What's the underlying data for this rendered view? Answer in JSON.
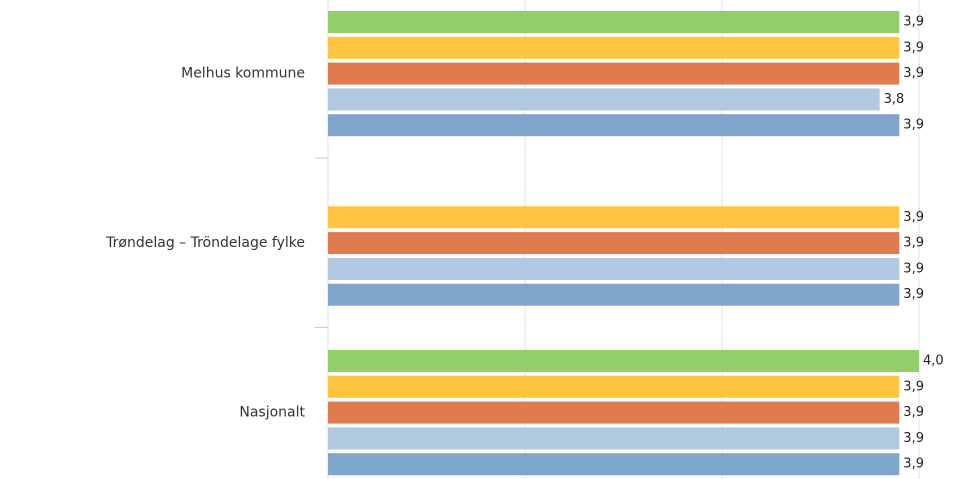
{
  "chart_data": {
    "type": "hbar",
    "categories": [
      "Melhus kommune",
      "Trøndelag – Tröndelage fylke",
      "Nasjonalt"
    ],
    "series": [
      {
        "color": "#92cf6a",
        "values": [
          3.9,
          null,
          4.0
        ],
        "value_labels": [
          "3,9",
          null,
          "4,0"
        ]
      },
      {
        "color": "#fec640",
        "values": [
          3.9,
          3.9,
          3.9
        ],
        "value_labels": [
          "3,9",
          "3,9",
          "3,9"
        ]
      },
      {
        "color": "#e07b4f",
        "values": [
          3.9,
          3.9,
          3.9
        ],
        "value_labels": [
          "3,9",
          "3,9",
          "3,9"
        ]
      },
      {
        "color": "#b0c8e0",
        "values": [
          3.8,
          3.9,
          3.9
        ],
        "value_labels": [
          "3,8",
          "3,9",
          "3,9"
        ]
      },
      {
        "color": "#80a5ca",
        "values": [
          3.9,
          3.9,
          3.9
        ],
        "value_labels": [
          "3,9",
          "3,9",
          "3,9"
        ]
      }
    ],
    "xlim": [
      1,
      4
    ],
    "xticks": [
      1,
      2,
      3,
      4
    ],
    "grid": true
  }
}
